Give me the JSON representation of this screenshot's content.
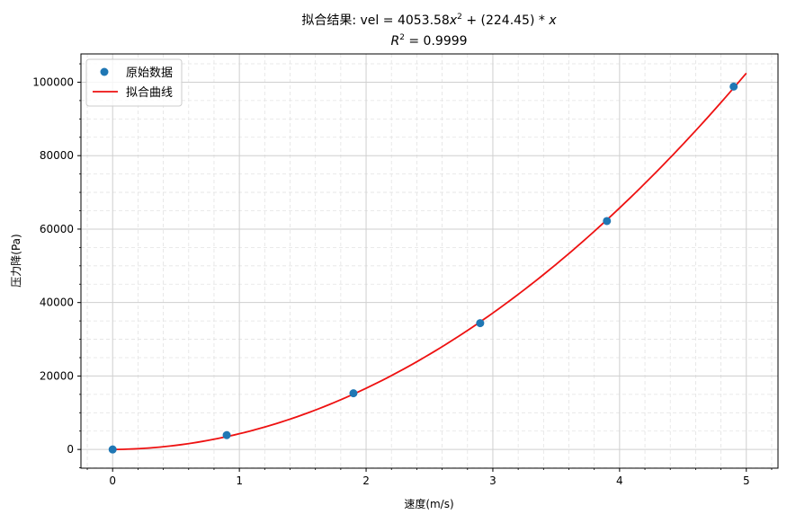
{
  "chart_data": {
    "type": "scatter",
    "title": {
      "line1_prefix": "拟合结果: vel = 4053.58",
      "line1_x": "x",
      "line1_sup": "2",
      "line1_mid": " + (224.45) * ",
      "line1_x2": "x",
      "line2_R": "R",
      "line2_sup": "2",
      "line2_rest": " = 0.9999"
    },
    "xlabel": "速度(m/s)",
    "ylabel": "压力降(Pa)",
    "xlim": [
      -0.25,
      5.25
    ],
    "ylim": [
      -5100,
      107700
    ],
    "xticks": [
      0,
      1,
      2,
      3,
      4,
      5
    ],
    "xtick_labels": [
      "0",
      "1",
      "2",
      "3",
      "4",
      "5"
    ],
    "yticks": [
      0,
      20000,
      40000,
      60000,
      80000,
      100000
    ],
    "ytick_labels": [
      "0",
      "20000",
      "40000",
      "60000",
      "80000",
      "100000"
    ],
    "x_minor_step": 0.2,
    "y_minor_step": 5000,
    "grid": true,
    "legend_position": "top-left",
    "fit": {
      "a": 4053.58,
      "b": 224.45,
      "x_range": [
        0,
        5
      ]
    },
    "series": [
      {
        "name": "原始数据",
        "kind": "scatter",
        "color": "#1f77b4",
        "x": [
          0,
          0.9,
          1.9,
          2.9,
          3.9,
          4.9
        ],
        "y": [
          0,
          3900,
          15300,
          34400,
          62200,
          98800
        ]
      },
      {
        "name": "拟合曲线",
        "kind": "line",
        "color": "#ee1111"
      }
    ]
  }
}
